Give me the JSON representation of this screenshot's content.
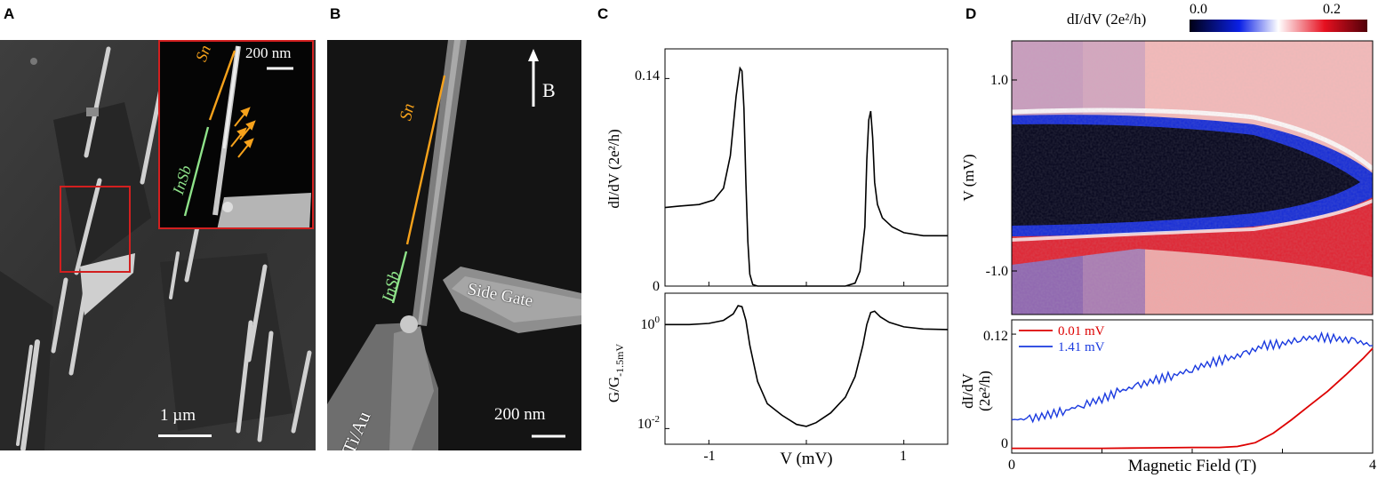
{
  "panels": {
    "a": {
      "label": "A",
      "scale_bar": "1 µm",
      "inset": {
        "scale_bar": "200 nm",
        "sn_label": "Sn",
        "insb_label": "InSb"
      }
    },
    "b": {
      "label": "B",
      "sn_label": "Sn",
      "insb_label": "InSb",
      "field_label": "B",
      "gate_label": "Side Gate",
      "contact_label": "Ti/Au",
      "scale_bar": "200 nm"
    },
    "c": {
      "label": "C",
      "top_ylabel": "dI/dV (2e²/h)",
      "top_yticks": [
        "0.14",
        "0"
      ],
      "bottom_ylabel_main": "G/G",
      "bottom_ylabel_sub": "-1.5mV",
      "bottom_yticks": [
        {
          "base": "10",
          "exp": "0"
        },
        {
          "base": "10",
          "exp": "-2"
        }
      ],
      "xlabel": "V (mV)",
      "xticks": [
        "-1",
        "1"
      ]
    },
    "d": {
      "label": "D",
      "colorbar_label": "dI/dV (2e²/h)",
      "colorbar_min": "0.0",
      "colorbar_max": "0.2",
      "map_ylabel": "V (mV)",
      "map_yticks": [
        "1.0",
        "-1.0"
      ],
      "line_ylabel_1": "dI/dV",
      "line_ylabel_2": "(2e²/h)",
      "line_yticks": [
        "0.12",
        "0"
      ],
      "xlabel": "Magnetic Field (T)",
      "xticks": [
        "0",
        "4"
      ],
      "legend": [
        {
          "label": "0.01 mV",
          "color": "#dd0000"
        },
        {
          "label": "1.41 mV",
          "color": "#1a3adf"
        }
      ]
    }
  },
  "chart_data": [
    {
      "type": "line",
      "panel": "C-top",
      "xlabel": "V (mV)",
      "ylabel": "dI/dV (2e²/h)",
      "xlim": [
        -1.45,
        1.45
      ],
      "ylim": [
        0,
        0.16
      ],
      "series": [
        {
          "x": [
            -1.45,
            -1.3,
            -1.1,
            -0.95,
            -0.85,
            -0.78,
            -0.72,
            -0.68,
            -0.66,
            -0.64,
            -0.62,
            -0.6,
            -0.58,
            -0.55,
            -0.5,
            -0.4,
            -0.2,
            0,
            0.2,
            0.4,
            0.5,
            0.55,
            0.6,
            0.62,
            0.64,
            0.66,
            0.68,
            0.7,
            0.73,
            0.78,
            0.88,
            1.0,
            1.2,
            1.45
          ],
          "y": [
            0.053,
            0.054,
            0.055,
            0.058,
            0.066,
            0.088,
            0.128,
            0.147,
            0.145,
            0.12,
            0.07,
            0.03,
            0.008,
            0.001,
            0,
            0,
            0,
            0,
            0,
            0,
            0.002,
            0.01,
            0.04,
            0.085,
            0.112,
            0.118,
            0.1,
            0.07,
            0.055,
            0.046,
            0.04,
            0.036,
            0.034,
            0.034
          ]
        }
      ]
    },
    {
      "type": "line",
      "panel": "C-bottom",
      "xlabel": "V (mV)",
      "ylabel": "G/G-1.5mV",
      "yscale": "log",
      "xlim": [
        -1.45,
        1.45
      ],
      "ylim": [
        0.005,
        4
      ],
      "series": [
        {
          "x": [
            -1.45,
            -1.2,
            -1.0,
            -0.85,
            -0.75,
            -0.7,
            -0.66,
            -0.62,
            -0.58,
            -0.5,
            -0.4,
            -0.25,
            -0.1,
            0,
            0.1,
            0.25,
            0.4,
            0.5,
            0.58,
            0.62,
            0.66,
            0.7,
            0.76,
            0.85,
            1.0,
            1.2,
            1.45
          ],
          "y": [
            1.0,
            1.0,
            1.05,
            1.2,
            1.6,
            2.3,
            2.2,
            1.2,
            0.4,
            0.08,
            0.03,
            0.018,
            0.012,
            0.011,
            0.013,
            0.02,
            0.04,
            0.1,
            0.4,
            1.0,
            1.7,
            1.8,
            1.4,
            1.1,
            0.9,
            0.82,
            0.8
          ]
        }
      ]
    },
    {
      "type": "heatmap",
      "panel": "D-top",
      "xlabel": "Magnetic Field (T)",
      "ylabel": "V (mV)",
      "xlim": [
        0,
        4
      ],
      "ylim": [
        -1.4,
        1.4
      ],
      "zlim": [
        0.0,
        0.2
      ],
      "colormap": [
        "#000014",
        "#0a20e6",
        "#ffffff",
        "#e61020",
        "#500008"
      ],
      "gap_edge_mV": {
        "B": [
          0,
          1,
          2,
          2.5,
          3,
          3.5,
          3.9
        ],
        "V": [
          0.68,
          0.66,
          0.6,
          0.55,
          0.45,
          0.3,
          0.1
        ]
      }
    },
    {
      "type": "line",
      "panel": "D-bottom",
      "xlabel": "Magnetic Field (T)",
      "ylabel": "dI/dV (2e²/h)",
      "xlim": [
        0,
        4
      ],
      "ylim": [
        -0.005,
        0.135
      ],
      "series": [
        {
          "name": "0.01 mV",
          "x": [
            0,
            0.5,
            1,
            1.5,
            2,
            2.3,
            2.5,
            2.7,
            2.9,
            3.1,
            3.3,
            3.5,
            3.7,
            3.9,
            4.0
          ],
          "y": [
            0,
            0,
            0,
            0.0005,
            0.001,
            0.001,
            0.002,
            0.006,
            0.016,
            0.03,
            0.045,
            0.06,
            0.077,
            0.095,
            0.105
          ]
        },
        {
          "name": "1.41 mV",
          "x": [
            0,
            0.2,
            0.4,
            0.6,
            0.8,
            1.0,
            1.2,
            1.4,
            1.6,
            1.8,
            2.0,
            2.2,
            2.4,
            2.6,
            2.8,
            3.0,
            3.2,
            3.4,
            3.6,
            3.8,
            4.0
          ],
          "y": [
            0.03,
            0.031,
            0.035,
            0.04,
            0.046,
            0.052,
            0.06,
            0.066,
            0.072,
            0.077,
            0.083,
            0.09,
            0.094,
            0.1,
            0.108,
            0.11,
            0.115,
            0.117,
            0.115,
            0.113,
            0.108
          ]
        }
      ]
    }
  ]
}
